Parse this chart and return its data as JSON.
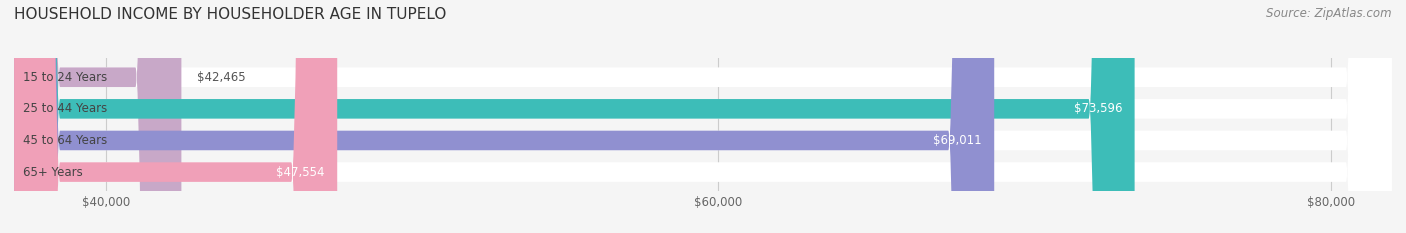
{
  "title": "HOUSEHOLD INCOME BY HOUSEHOLDER AGE IN TUPELO",
  "source": "Source: ZipAtlas.com",
  "categories": [
    "15 to 24 Years",
    "25 to 44 Years",
    "45 to 64 Years",
    "65+ Years"
  ],
  "values": [
    42465,
    73596,
    69011,
    47554
  ],
  "bar_colors": [
    "#c8a8c8",
    "#3dbdb8",
    "#9090d0",
    "#f0a0b8"
  ],
  "bar_labels": [
    "$42,465",
    "$73,596",
    "$69,011",
    "$47,554"
  ],
  "xmin": 37000,
  "xmax": 82000,
  "xticks": [
    40000,
    60000,
    80000
  ],
  "xticklabels": [
    "$40,000",
    "$60,000",
    "$80,000"
  ],
  "background_color": "#f5f5f5",
  "bar_bg_color": "#ffffff",
  "title_fontsize": 11,
  "source_fontsize": 8.5,
  "label_fontsize": 8.5,
  "tick_fontsize": 8.5
}
